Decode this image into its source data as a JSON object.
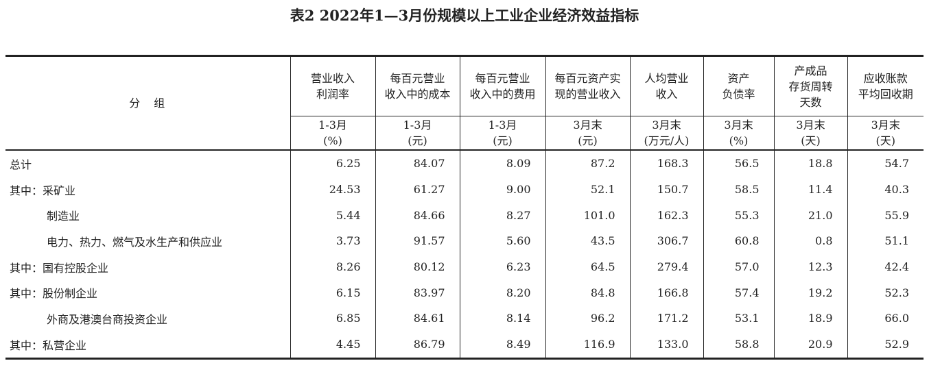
{
  "title": "表2  2022年1—3月份规模以上工业企业经济效益指标",
  "table": {
    "group_header": "分　组",
    "columns": [
      {
        "name": [
          "营业收入",
          "利润率"
        ],
        "unit": [
          "1-3月",
          "(%)"
        ]
      },
      {
        "name": [
          "每百元营业",
          "收入中的成本"
        ],
        "unit": [
          "1-3月",
          "(元)"
        ]
      },
      {
        "name": [
          "每百元营业",
          "收入中的费用"
        ],
        "unit": [
          "1-3月",
          "(元)"
        ]
      },
      {
        "name": [
          "每百元资产实",
          "现的营业收入"
        ],
        "unit": [
          "3月末",
          "(元)"
        ]
      },
      {
        "name": [
          "人均营业",
          "收入"
        ],
        "unit": [
          "3月末",
          "(万元/人)"
        ]
      },
      {
        "name": [
          "资产",
          "负债率"
        ],
        "unit": [
          "3月末",
          "(%)"
        ]
      },
      {
        "name": [
          "产成品",
          "存货周转",
          "天数"
        ],
        "unit": [
          "3月末",
          "(天)"
        ]
      },
      {
        "name": [
          "应收账款",
          "平均回收期"
        ],
        "unit": [
          "3月末",
          "(天)"
        ]
      }
    ],
    "rows": [
      {
        "label": "总计",
        "values": [
          "6.25",
          "84.07",
          "8.09",
          "87.2",
          "168.3",
          "56.5",
          "18.8",
          "54.7"
        ]
      },
      {
        "label": "其中：采矿业",
        "values": [
          "24.53",
          "61.27",
          "9.00",
          "52.1",
          "150.7",
          "58.5",
          "11.4",
          "40.3"
        ]
      },
      {
        "label": "制造业",
        "values": [
          "5.44",
          "84.66",
          "8.27",
          "101.0",
          "162.3",
          "55.3",
          "21.0",
          "55.9"
        ]
      },
      {
        "label": "电力、热力、燃气及水生产和供应业",
        "values": [
          "3.73",
          "91.57",
          "5.60",
          "43.5",
          "306.7",
          "60.8",
          "0.8",
          "51.1"
        ]
      },
      {
        "label": "其中：国有控股企业",
        "values": [
          "8.26",
          "80.12",
          "6.23",
          "64.5",
          "279.4",
          "57.0",
          "12.3",
          "42.4"
        ]
      },
      {
        "label": "其中：股份制企业",
        "values": [
          "6.15",
          "83.97",
          "8.20",
          "84.8",
          "166.8",
          "57.4",
          "19.2",
          "52.3"
        ]
      },
      {
        "label": "外商及港澳台商投资企业",
        "values": [
          "6.85",
          "84.61",
          "8.14",
          "96.2",
          "171.2",
          "53.1",
          "18.9",
          "66.0"
        ]
      },
      {
        "label": "其中：私营企业",
        "values": [
          "4.45",
          "86.79",
          "8.49",
          "116.9",
          "133.0",
          "58.8",
          "20.9",
          "52.9"
        ]
      }
    ]
  }
}
